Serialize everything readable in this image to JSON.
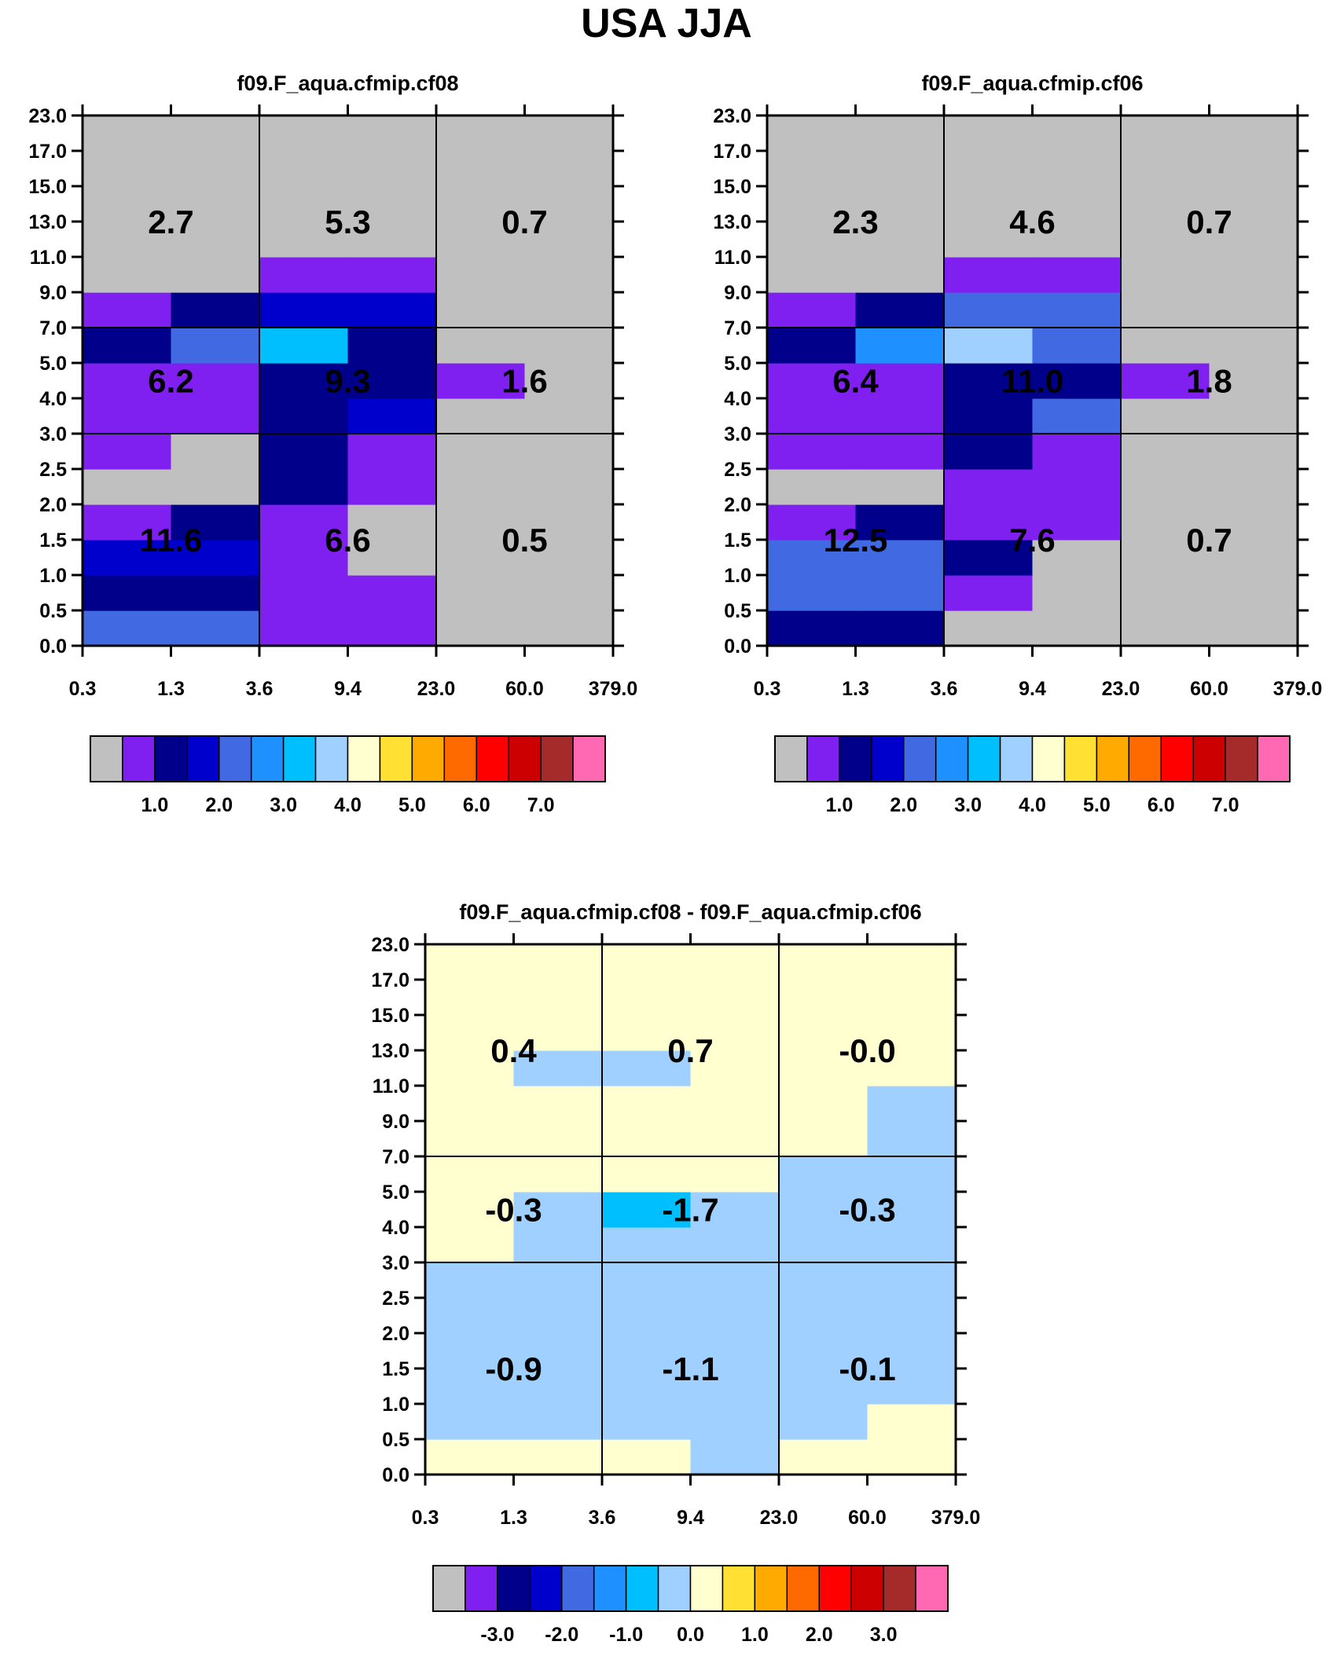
{
  "page_title": "USA JJA",
  "chart_data": [
    {
      "type": "heatmap",
      "title": "f09.F_aqua.cfmip.cf08",
      "x_ticks": [
        "0.3",
        "1.3",
        "3.6",
        "9.4",
        "23.0",
        "60.0",
        "379.0"
      ],
      "y_ticks": [
        "0.0",
        "0.5",
        "1.0",
        "1.5",
        "2.0",
        "2.5",
        "3.0",
        "4.0",
        "5.0",
        "7.0",
        "9.0",
        "11.0",
        "13.0",
        "15.0",
        "17.0",
        "23.0"
      ],
      "bin_colors": [
        [
          4,
          4,
          1,
          1,
          0,
          0
        ],
        [
          2,
          2,
          1,
          1,
          0,
          0
        ],
        [
          3,
          3,
          1,
          0,
          0,
          0
        ],
        [
          1,
          2,
          1,
          0,
          0,
          0
        ],
        [
          0,
          0,
          2,
          1,
          0,
          0
        ],
        [
          1,
          0,
          2,
          1,
          0,
          0
        ],
        [
          1,
          1,
          2,
          3,
          0,
          0
        ],
        [
          1,
          1,
          2,
          2,
          1,
          0
        ],
        [
          2,
          4,
          6,
          2,
          0,
          0
        ],
        [
          1,
          2,
          3,
          3,
          0,
          0
        ],
        [
          0,
          0,
          1,
          1,
          0,
          0
        ],
        [
          0,
          0,
          0,
          0,
          0,
          0
        ],
        [
          0,
          0,
          0,
          0,
          0,
          0
        ],
        [
          0,
          0,
          0,
          0,
          0,
          0
        ],
        [
          0,
          0,
          0,
          0,
          0,
          0
        ]
      ],
      "box_totals": [
        [
          "11.6",
          "6.6",
          "0.5"
        ],
        [
          "6.2",
          "9.3",
          "1.6"
        ],
        [
          "2.7",
          "5.3",
          "0.7"
        ]
      ],
      "colorbar_labels": [
        "1.0",
        "2.0",
        "3.0",
        "4.0",
        "5.0",
        "6.0",
        "7.0"
      ]
    },
    {
      "type": "heatmap",
      "title": "f09.F_aqua.cfmip.cf06",
      "x_ticks": [
        "0.3",
        "1.3",
        "3.6",
        "9.4",
        "23.0",
        "60.0",
        "379.0"
      ],
      "y_ticks": [
        "0.0",
        "0.5",
        "1.0",
        "1.5",
        "2.0",
        "2.5",
        "3.0",
        "4.0",
        "5.0",
        "7.0",
        "9.0",
        "11.0",
        "13.0",
        "15.0",
        "17.0",
        "23.0"
      ],
      "bin_colors": [
        [
          2,
          2,
          0,
          0,
          0,
          0
        ],
        [
          4,
          4,
          1,
          0,
          0,
          0
        ],
        [
          4,
          4,
          2,
          0,
          0,
          0
        ],
        [
          1,
          2,
          1,
          1,
          0,
          0
        ],
        [
          0,
          0,
          1,
          1,
          0,
          0
        ],
        [
          1,
          1,
          2,
          1,
          0,
          0
        ],
        [
          1,
          1,
          2,
          4,
          0,
          0
        ],
        [
          1,
          1,
          2,
          2,
          1,
          0
        ],
        [
          2,
          5,
          7,
          4,
          0,
          0
        ],
        [
          1,
          2,
          4,
          4,
          0,
          0
        ],
        [
          0,
          0,
          1,
          1,
          0,
          0
        ],
        [
          0,
          0,
          0,
          0,
          0,
          0
        ],
        [
          0,
          0,
          0,
          0,
          0,
          0
        ],
        [
          0,
          0,
          0,
          0,
          0,
          0
        ],
        [
          0,
          0,
          0,
          0,
          0,
          0
        ]
      ],
      "box_totals": [
        [
          "12.5",
          "7.6",
          "0.7"
        ],
        [
          "6.4",
          "11.0",
          "1.8"
        ],
        [
          "2.3",
          "4.6",
          "0.7"
        ]
      ],
      "colorbar_labels": [
        "1.0",
        "2.0",
        "3.0",
        "4.0",
        "5.0",
        "6.0",
        "7.0"
      ]
    },
    {
      "type": "heatmap",
      "title": "f09.F_aqua.cfmip.cf08 - f09.F_aqua.cfmip.cf06",
      "x_ticks": [
        "0.3",
        "1.3",
        "3.6",
        "9.4",
        "23.0",
        "60.0",
        "379.0"
      ],
      "y_ticks": [
        "0.0",
        "0.5",
        "1.0",
        "1.5",
        "2.0",
        "2.5",
        "3.0",
        "4.0",
        "5.0",
        "7.0",
        "9.0",
        "11.0",
        "13.0",
        "15.0",
        "17.0",
        "23.0"
      ],
      "bin_colors": [
        [
          8,
          8,
          8,
          7,
          8,
          8
        ],
        [
          7,
          7,
          7,
          7,
          7,
          8
        ],
        [
          7,
          7,
          7,
          7,
          7,
          7
        ],
        [
          7,
          7,
          7,
          7,
          7,
          7
        ],
        [
          7,
          7,
          7,
          7,
          7,
          7
        ],
        [
          7,
          7,
          7,
          7,
          7,
          7
        ],
        [
          8,
          7,
          7,
          7,
          7,
          7
        ],
        [
          8,
          7,
          6,
          7,
          7,
          7
        ],
        [
          8,
          8,
          8,
          8,
          7,
          7
        ],
        [
          8,
          8,
          8,
          8,
          8,
          7
        ],
        [
          8,
          8,
          8,
          8,
          8,
          7
        ],
        [
          8,
          7,
          7,
          8,
          8,
          8
        ],
        [
          8,
          8,
          8,
          8,
          8,
          8
        ],
        [
          8,
          8,
          8,
          8,
          8,
          8
        ],
        [
          8,
          8,
          8,
          8,
          8,
          8
        ]
      ],
      "box_totals": [
        [
          "-0.9",
          "-1.1",
          "-0.1"
        ],
        [
          "-0.3",
          "-1.7",
          "-0.3"
        ],
        [
          "0.4",
          "0.7",
          "-0.0"
        ]
      ],
      "colorbar_labels": [
        "-3.0",
        "-2.0",
        "-1.0",
        "0.0",
        "1.0",
        "2.0",
        "3.0"
      ]
    }
  ],
  "palette": [
    "#c0c0c0",
    "#8020f0",
    "#00008b",
    "#0000cd",
    "#4169e1",
    "#1e90ff",
    "#00bfff",
    "#a0d0ff",
    "#ffffd0",
    "#ffe033",
    "#ffaa00",
    "#ff6a00",
    "#ff0000",
    "#cc0000",
    "#a52a2a",
    "#ff69b4"
  ]
}
